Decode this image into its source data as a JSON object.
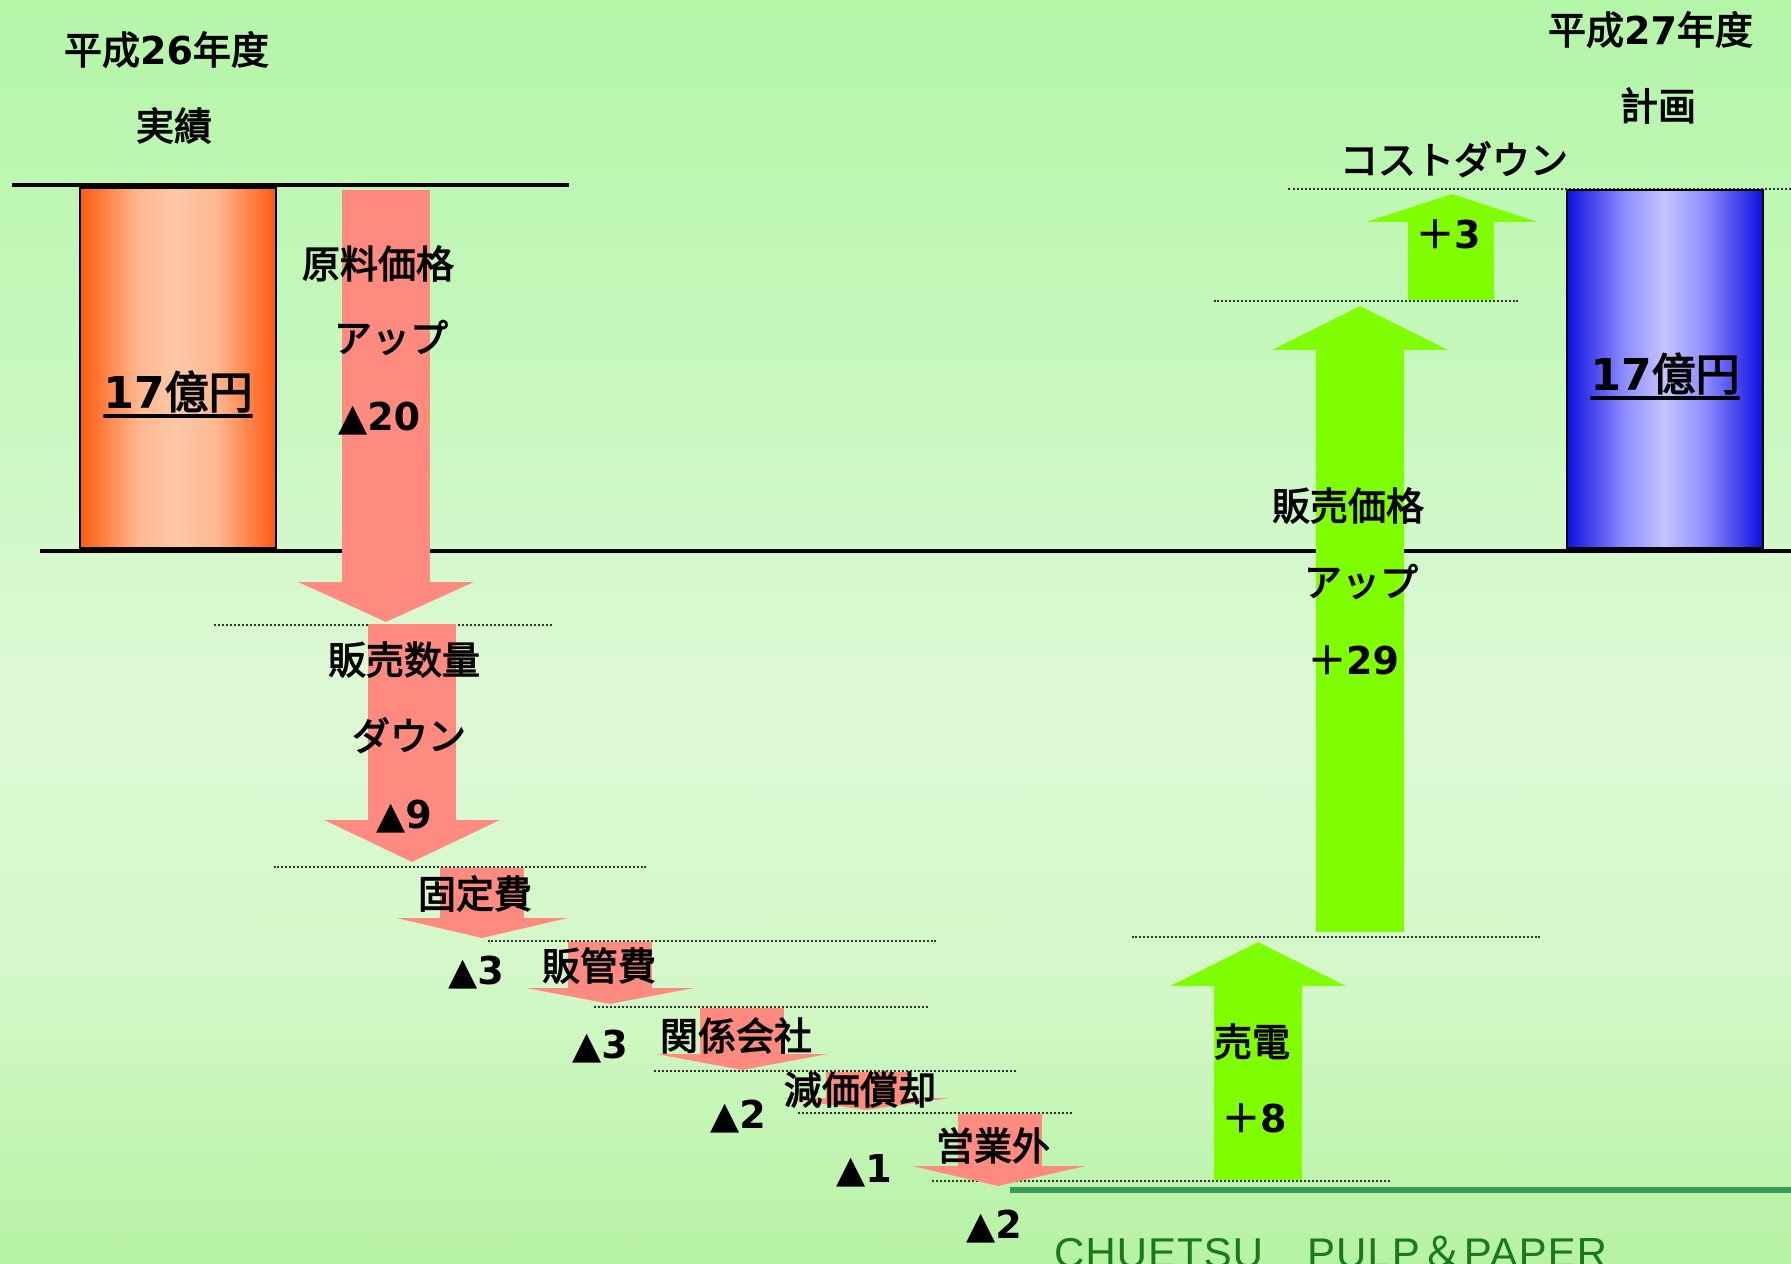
{
  "left_header": {
    "line1": "平成26年度",
    "line2": "実績"
  },
  "right_header": {
    "line1": "平成27年度",
    "line2": "計画"
  },
  "start_bar": {
    "value": 17,
    "label": "17億円",
    "color": "#ff6a20"
  },
  "end_bar": {
    "value": 17,
    "label": "17億円",
    "color": "#2020e8"
  },
  "decreases": [
    {
      "id": "raw-material",
      "line1": "原料価格",
      "line2": "アップ",
      "amount_text": "▲20",
      "value": -20
    },
    {
      "id": "sales-volume",
      "line1": "販売数量",
      "line2": "ダウン",
      "amount_text": "▲9",
      "value": -9
    },
    {
      "id": "fixed-cost",
      "line1": "固定費",
      "line2": "",
      "amount_text": "▲3",
      "value": -3
    },
    {
      "id": "sga",
      "line1": "販管費",
      "line2": "",
      "amount_text": "▲3",
      "value": -3
    },
    {
      "id": "affiliates",
      "line1": "関係会社",
      "line2": "",
      "amount_text": "▲2",
      "value": -2
    },
    {
      "id": "depreciation",
      "line1": "減価償却",
      "line2": "",
      "amount_text": "▲1",
      "value": -1
    },
    {
      "id": "non-operating",
      "line1": "営業外",
      "line2": "",
      "amount_text": "▲2",
      "value": -2
    }
  ],
  "increases": [
    {
      "id": "power-sales",
      "line1": "売電",
      "line2": "",
      "amount_text": "＋8",
      "value": 8
    },
    {
      "id": "selling-price",
      "line1": "販売価格",
      "line2": "アップ",
      "amount_text": "＋29",
      "value": 29
    },
    {
      "id": "cost-down",
      "line1": "コストダウン",
      "line2": "",
      "amount_text": "＋3",
      "value": 3
    }
  ],
  "colors": {
    "decrease_arrow": "#ff8a80",
    "increase_arrow": "#80ff00",
    "footer": "#1a7a1a"
  },
  "footer": {
    "text": "CHUETSU　PULP＆PAPER"
  }
}
